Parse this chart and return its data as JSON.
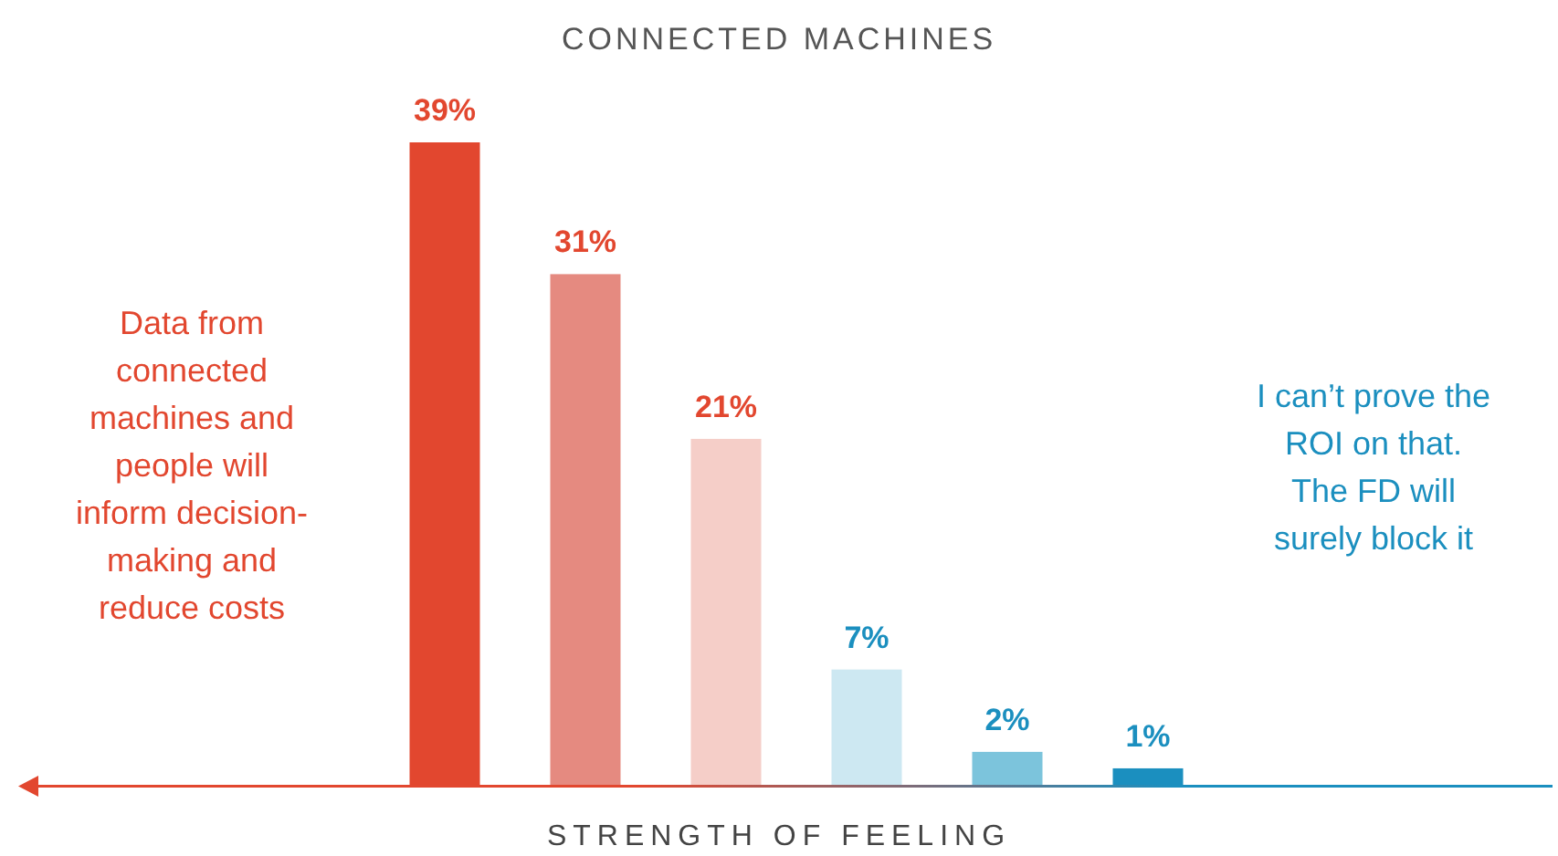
{
  "chart_data": {
    "type": "bar",
    "title": "CONNECTED MACHINES",
    "xlabel": "STRENGTH OF FEELING",
    "categories": [
      null,
      null,
      null,
      null,
      null,
      null
    ],
    "values": [
      39,
      31,
      21,
      7,
      2,
      1
    ],
    "colors": [
      "#e2472f",
      "#e58a80",
      "#f5cec8",
      "#cde8f2",
      "#7cc4dc",
      "#1b8fbf"
    ],
    "value_labels": [
      "39%",
      "31%",
      "21%",
      "7%",
      "2%",
      "1%"
    ],
    "annotations": [
      "Data from\nconnected\nmachines and\npeople will\ninform decision-\nmaking and\nreduce costs",
      "I can’t prove the\nROI on that.\nThe FD will\nsurely block it"
    ]
  }
}
